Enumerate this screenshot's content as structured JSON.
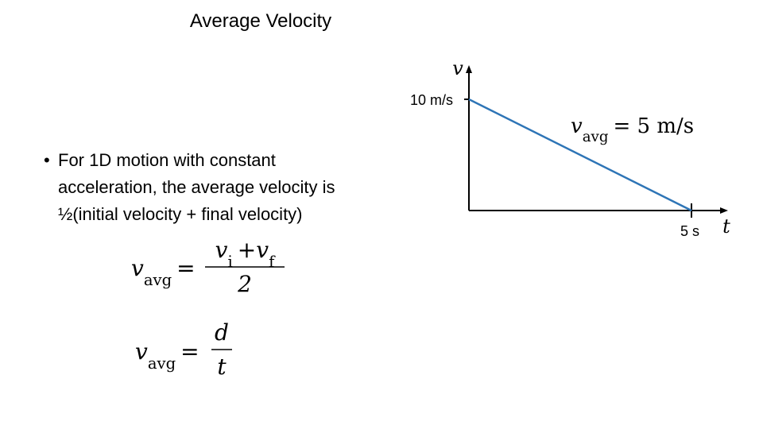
{
  "title": "Average Velocity",
  "bullet": [
    "For 1D motion with constant",
    "acceleration, the average velocity is",
    "½(initial velocity + final velocity)"
  ],
  "equations": [
    {
      "symbol": "v",
      "subscript": "avg",
      "relation": "=",
      "numerator": [
        {
          "text": "v",
          "sub": "i"
        },
        {
          "text": "+"
        },
        {
          "text": "v",
          "sub": "f"
        }
      ],
      "denominator": "2"
    },
    {
      "symbol": "v",
      "subscript": "avg",
      "relation": "=",
      "numerator": [
        {
          "text": "d"
        }
      ],
      "denominator": "t"
    }
  ],
  "chart_data": {
    "type": "line",
    "x_label": "t",
    "y_label": "v",
    "annotation": {
      "symbol": "v",
      "subscript": "avg",
      "text": "= 5 m/s"
    },
    "x": [
      0,
      5
    ],
    "values": [
      10,
      0
    ],
    "color": "#2e75b6",
    "xlim": [
      0,
      5.75
    ],
    "ylim": [
      0,
      12.9
    ],
    "xticks": [
      {
        "value": 5,
        "label": "5 s"
      }
    ],
    "yticks": [
      {
        "value": 10,
        "label": "10 m/s"
      }
    ]
  }
}
